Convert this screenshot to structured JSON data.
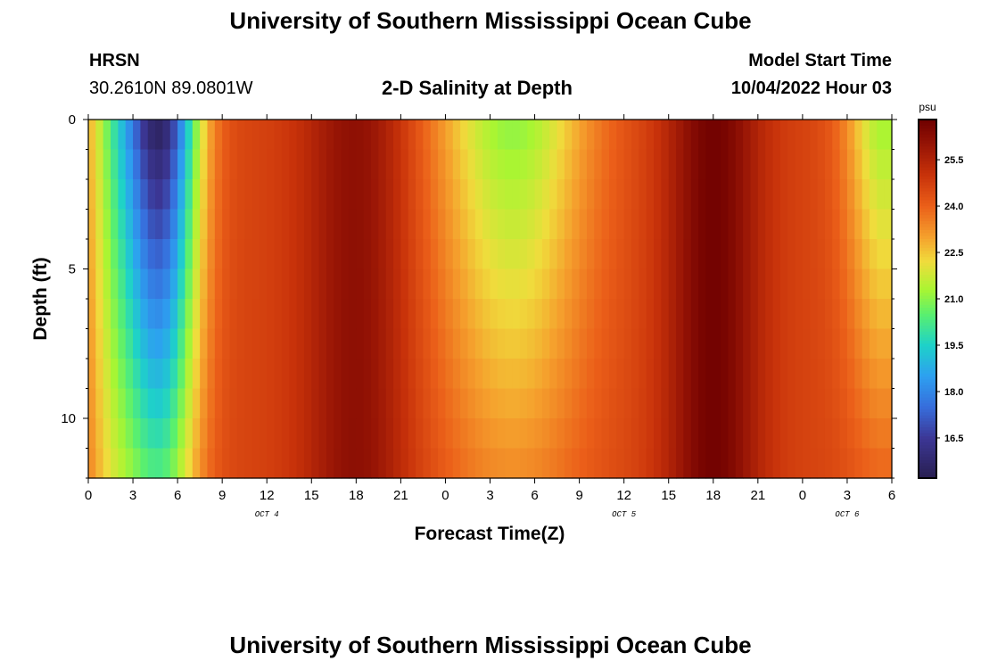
{
  "header": {
    "title": "University of Southern Mississippi Ocean Cube",
    "station": "HRSN",
    "coords": "30.2610N  89.0801W",
    "chart_title": "2-D Salinity at Depth",
    "model_label": "Model Start Time",
    "model_time": "10/04/2022 Hour 03"
  },
  "footer": {
    "title": "University of Southern Mississippi Ocean Cube"
  },
  "chart_data": {
    "type": "heatmap",
    "title": "2-D Salinity at Depth",
    "xlabel": "Forecast Time(Z)",
    "ylabel": "Depth (ft)",
    "x_hours_from_start": [
      0,
      54
    ],
    "y_depth_range_ft": [
      0,
      12
    ],
    "x_tick_labels": [
      "0",
      "3",
      "6",
      "9",
      "12",
      "15",
      "18",
      "21",
      "0",
      "3",
      "6",
      "9",
      "12",
      "15",
      "18",
      "21",
      "0",
      "3",
      "6"
    ],
    "y_tick_labels": [
      "0",
      "5",
      "10"
    ],
    "date_labels": [
      {
        "text": "OCT 4",
        "hour": 12
      },
      {
        "text": "OCT 5",
        "hour": 36
      },
      {
        "text": "OCT 6",
        "hour": 51
      }
    ],
    "colorbar": {
      "unit": "psu",
      "ticks": [
        "25.5",
        "24.0",
        "22.5",
        "21.0",
        "19.5",
        "18.0",
        "16.5"
      ],
      "range": [
        15.2,
        26.8
      ]
    },
    "description": "Salinity (psu) versus depth and forecast time; low values (~15-17) near hours 3-6 at surface, high (~26.5) near hours 16-19 and 40-45."
  }
}
